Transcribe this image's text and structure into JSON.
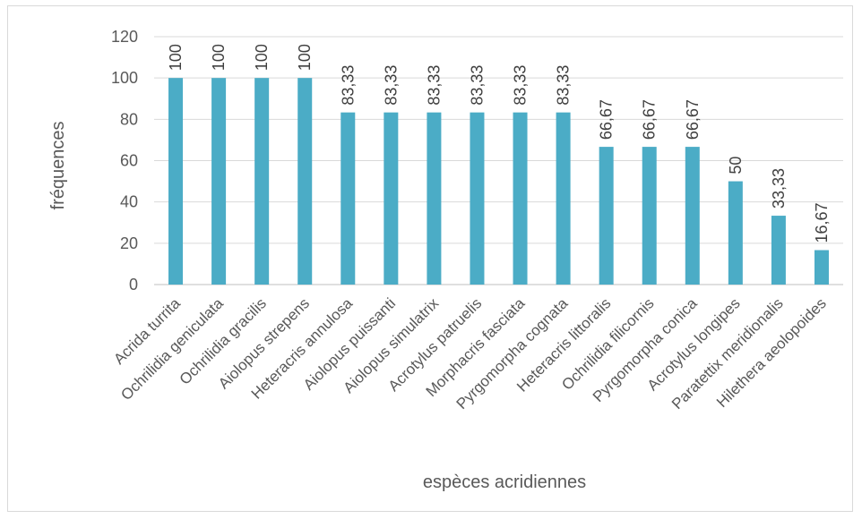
{
  "chart_data": {
    "type": "bar",
    "categories": [
      "Acrida turrita",
      "Ochrilidia geniculata",
      "Ochrilidia gracilis",
      "Aiolopus strepens",
      "Heteracris annulosa",
      "Aiolopus puissanti",
      "Aiolopus simulatrix",
      "Acrotylus patruelis",
      "Morphacris fasciata",
      "Pyrgomorpha cognata",
      "Heteracris littoralis",
      "Ochrilidia filicornis",
      "Pyrgomorpha conica",
      "Acrotylus longipes",
      "Paratettix  meridionalis",
      "Hilethera aeolopoides"
    ],
    "values": [
      100,
      100,
      100,
      100,
      83.33,
      83.33,
      83.33,
      83.33,
      83.33,
      83.33,
      66.67,
      66.67,
      66.67,
      50,
      33.33,
      16.67
    ],
    "data_labels": [
      "100",
      "100",
      "100",
      "100",
      "83,33",
      "83,33",
      "83,33",
      "83,33",
      "83,33",
      "83,33",
      "66,67",
      "66,67",
      "66,67",
      "50",
      "33,33",
      "16,67"
    ],
    "xlabel": "espèces acridiennes",
    "ylabel": "fréquences",
    "ylim": [
      0,
      120
    ],
    "yticks": [
      0,
      20,
      40,
      60,
      80,
      100,
      120
    ],
    "grid": true,
    "legend": "none",
    "bar_color": "#4BACC6",
    "grid_color": "#d9d9d9"
  }
}
